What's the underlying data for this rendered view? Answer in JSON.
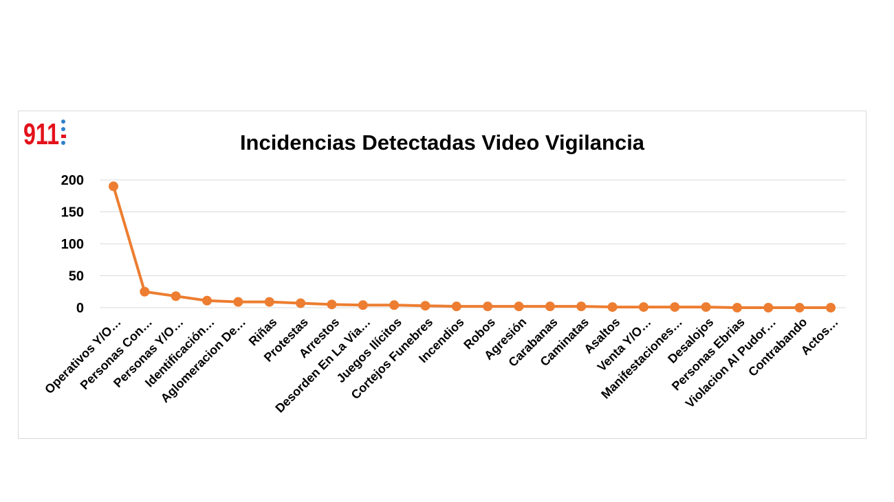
{
  "logo": {
    "text": "911",
    "color": "#e3121b",
    "accent": "#2f80c9"
  },
  "chart_data": {
    "type": "line",
    "title": "Incidencias Detectadas Video Vigilancia",
    "xlabel": "",
    "ylabel": "",
    "ylim": [
      0,
      200
    ],
    "yticks": [
      0,
      50,
      100,
      150,
      200
    ],
    "grid": true,
    "legend": "none",
    "color": "#ed7d31",
    "categories": [
      "Operativos Y/O…",
      "Personas Con…",
      "Personas Y/O…",
      "Identificación…",
      "Aglomeracion De…",
      "Riñas",
      "Protestas",
      "Arrestos",
      "Desorden En La Via…",
      "Juegos Ilícitos",
      "Cortejos Funebres",
      "Incendios",
      "Robos",
      "Agresión",
      "Carabanas",
      "Caminatas",
      "Asaltos",
      "Venta Y/O…",
      "Manifestaciones…",
      "Desalojos",
      "Personas Ebrias",
      "Violacion Al Pudor…",
      "Contrabando",
      "Actos…"
    ],
    "series": [
      {
        "values": [
          190,
          25,
          18,
          11,
          9,
          9,
          7,
          5,
          4,
          4,
          3,
          2,
          2,
          2,
          2,
          2,
          1,
          1,
          1,
          1,
          0,
          0,
          0,
          0
        ]
      }
    ]
  }
}
